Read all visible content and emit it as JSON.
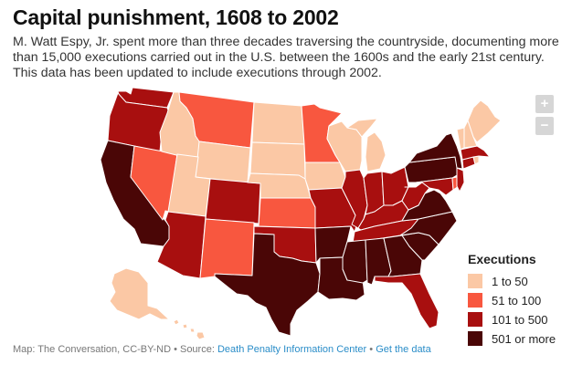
{
  "title": "Capital punishment, 1608 to 2002",
  "subtitle": "M. Watt Espy, Jr. spent more than three decades traversing the countryside, documenting more than 15,000 executions carried out in the U.S. between the 1600s and the early 21st century. This data has been updated to include executions through 2002.",
  "zoom": {
    "in_label": "+",
    "out_label": "−"
  },
  "legend": {
    "title": "Executions",
    "items": [
      {
        "label": "1 to 50",
        "color": "#fbc8a5"
      },
      {
        "label": "51 to 100",
        "color": "#f8573f"
      },
      {
        "label": "101 to 500",
        "color": "#a80f0f"
      },
      {
        "label": "501 or more",
        "color": "#4a0606"
      }
    ]
  },
  "footer": {
    "credit": "Map: The Conversation, CC-BY-ND • Source: ",
    "source_link": "Death Penalty Information Center",
    "separator": " • ",
    "data_link": "Get the data"
  },
  "map_data": {
    "classes": [
      "1 to 50",
      "51 to 100",
      "101 to 500",
      "501 or more"
    ],
    "states": {
      "WA": "101 to 500",
      "OR": "101 to 500",
      "CA": "501 or more",
      "NV": "51 to 100",
      "ID": "1 to 50",
      "MT": "51 to 100",
      "WY": "1 to 50",
      "UT": "1 to 50",
      "AZ": "101 to 500",
      "CO": "101 to 500",
      "NM": "51 to 100",
      "ND": "1 to 50",
      "SD": "1 to 50",
      "NE": "1 to 50",
      "KS": "51 to 100",
      "OK": "101 to 500",
      "TX": "501 or more",
      "MN": "51 to 100",
      "IA": "1 to 50",
      "MO": "101 to 500",
      "AR": "501 or more",
      "LA": "501 or more",
      "WI": "1 to 50",
      "IL": "101 to 500",
      "MI": "1 to 50",
      "IN": "101 to 500",
      "OH": "101 to 500",
      "KY": "101 to 500",
      "TN": "101 to 500",
      "MS": "501 or more",
      "AL": "501 or more",
      "GA": "501 or more",
      "FL": "101 to 500",
      "SC": "501 or more",
      "NC": "501 or more",
      "VA": "501 or more",
      "WV": "101 to 500",
      "PA": "501 or more",
      "NY": "501 or more",
      "MD": "101 to 500",
      "DE": "51 to 100",
      "NJ": "101 to 500",
      "CT": "101 to 500",
      "RI": "1 to 50",
      "MA": "101 to 500",
      "VT": "1 to 50",
      "NH": "1 to 50",
      "ME": "1 to 50",
      "AK": "1 to 50",
      "HI": "1 to 50"
    }
  }
}
